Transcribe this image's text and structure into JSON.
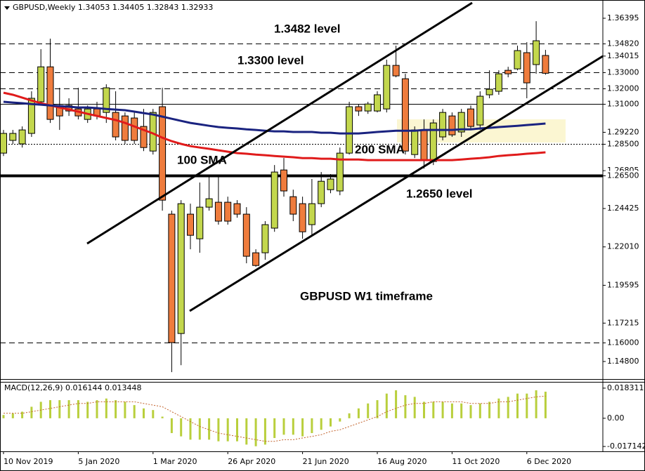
{
  "chart_data": [
    {
      "type": "candlestick",
      "title": "GBPUSD,Weekly",
      "categories": [
        "10 Nov 2019",
        null,
        null,
        null,
        null,
        null,
        null,
        null,
        "5 Jan 2020",
        null,
        null,
        null,
        null,
        null,
        null,
        null,
        "1 Mar 2020",
        null,
        null,
        null,
        null,
        null,
        null,
        null,
        "26 Apr 2020",
        null,
        null,
        null,
        null,
        null,
        null,
        null,
        "21 Jun 2020",
        null,
        null,
        null,
        null,
        null,
        null,
        null,
        "16 Aug 2020",
        null,
        null,
        null,
        null,
        null,
        null,
        null,
        "11 Oct 2020",
        null,
        null,
        null,
        null,
        null,
        null,
        null,
        "6 Dec 2020",
        null,
        null
      ],
      "open": [
        1.2791,
        1.2871,
        1.2849,
        1.2915,
        1.3114,
        1.3334,
        1.3091,
        1.3091,
        1.3069,
        1.3003,
        1.3069,
        1.3047,
        1.3047,
        1.3025,
        1.3012,
        1.2959,
        1.2804,
        1.3083,
        1.2407,
        1.1656,
        1.2407,
        1.2252,
        1.2451,
        1.2482,
        1.2482,
        1.2473,
        1.2407,
        1.2164,
        1.2164,
        1.2319,
        1.2685,
        1.2517,
        1.2473,
        1.2341,
        1.2473,
        1.2561,
        1.2553,
        1.2791,
        1.3083,
        1.3056,
        1.3056,
        1.3069,
        1.3343,
        1.3259,
        1.2782,
        1.2937,
        1.2738,
        1.2893,
        1.3025,
        1.2924,
        1.3069,
        1.2968,
        1.3158,
        1.318,
        1.3312,
        1.3321,
        1.3423,
        1.3348,
        1.34053
      ],
      "high": [
        1.2937,
        1.2937,
        1.2959,
        1.318,
        1.3445,
        1.3511,
        1.3202,
        1.3136,
        1.3202,
        1.3091,
        1.3114,
        1.3224,
        1.318,
        1.3047,
        1.3047,
        1.3069,
        1.3069,
        1.3202,
        1.2429,
        1.2495,
        1.2473,
        1.2606,
        1.265,
        1.265,
        1.2517,
        1.2495,
        1.2451,
        1.2186,
        1.2363,
        1.2716,
        1.276,
        1.2561,
        1.2517,
        1.2628,
        1.2672,
        1.2659,
        1.2826,
        1.3114,
        1.31,
        1.3114,
        1.318,
        1.3379,
        1.3467,
        1.329,
        1.2959,
        1.3003,
        1.3003,
        1.3069,
        1.3047,
        1.3069,
        1.3091,
        1.318,
        1.3312,
        1.3312,
        1.3334,
        1.3467,
        1.3489,
        1.3621,
        1.34405
      ],
      "low": [
        1.2773,
        1.2849,
        1.2826,
        1.2893,
        1.3091,
        1.2981,
        1.2937,
        1.3025,
        1.3003,
        1.2981,
        1.3003,
        1.2981,
        1.2871,
        1.2849,
        1.2849,
        1.2804,
        1.2782,
        1.2429,
        1.1413,
        1.1457,
        1.2186,
        1.2164,
        1.2429,
        1.2341,
        1.2341,
        1.2385,
        1.2098,
        1.2076,
        1.212,
        1.2296,
        1.2517,
        1.2363,
        1.2252,
        1.2274,
        1.2451,
        1.2539,
        1.2526,
        1.2782,
        1.3025,
        1.3038,
        1.3047,
        1.3047,
        1.3268,
        1.2782,
        1.276,
        1.2694,
        1.2716,
        1.2871,
        1.2893,
        1.2893,
        1.2937,
        1.2937,
        1.3136,
        1.3158,
        1.3268,
        1.3312,
        1.3136,
        1.329,
        1.32843
      ],
      "close": [
        1.2915,
        1.2915,
        1.2937,
        1.3136,
        1.3334,
        1.3003,
        1.3025,
        1.3056,
        1.3025,
        1.3069,
        1.3025,
        1.3202,
        1.2893,
        1.2871,
        1.2871,
        1.2826,
        1.3047,
        1.2495,
        1.1599,
        1.2473,
        1.2274,
        1.2451,
        1.2504,
        1.2363,
        1.2363,
        1.2407,
        1.2142,
        1.2084,
        1.2341,
        1.2672,
        1.2553,
        1.2407,
        1.2296,
        1.2473,
        1.2614,
        1.2628,
        1.2791,
        1.3083,
        1.3056,
        1.31,
        1.3158,
        1.3343,
        1.3277,
        1.2804,
        1.2937,
        1.2747,
        1.2981,
        1.3047,
        1.2906,
        1.3047,
        1.2959,
        1.3149,
        1.3193,
        1.329,
        1.329,
        1.3436,
        1.3233,
        1.3498,
        1.32933
      ],
      "up_color": "#c3d74d",
      "down_color": "#ef7c3d",
      "series": [
        {
          "name": "100 SMA",
          "color": "#e01b1b",
          "values": [
            1.3171,
            1.3158,
            1.314,
            1.3122,
            1.3105,
            1.3091,
            1.3078,
            1.3065,
            1.3052,
            1.3038,
            1.3025,
            1.3012,
            1.2999,
            1.2981,
            1.2959,
            1.2937,
            1.2915,
            1.2888,
            1.2866,
            1.2849,
            1.2835,
            1.2826,
            1.2818,
            1.2809,
            1.28,
            1.2791,
            1.2787,
            1.2782,
            1.2778,
            1.2773,
            1.2769,
            1.2765,
            1.276,
            1.276,
            1.2756,
            1.2756,
            1.2751,
            1.2751,
            1.2751,
            1.2747,
            1.2747,
            1.2747,
            1.2747,
            1.2747,
            1.2747,
            1.2747,
            1.2747,
            1.2747,
            1.2747,
            1.2751,
            1.2756,
            1.276,
            1.2765,
            1.2773,
            1.2778,
            1.2782,
            1.2787,
            1.2791,
            1.2796
          ]
        },
        {
          "name": "200 SMA",
          "color": "#1a2380",
          "values": [
            1.3114,
            1.3109,
            1.3105,
            1.31,
            1.3096,
            1.3091,
            1.3087,
            1.3083,
            1.3078,
            1.3078,
            1.3074,
            1.3069,
            1.3065,
            1.3061,
            1.3052,
            1.3043,
            1.3034,
            1.3021,
            1.3007,
            1.2994,
            1.2981,
            1.2972,
            1.2963,
            1.2955,
            1.295,
            1.2946,
            1.2941,
            1.2937,
            1.2932,
            1.2928,
            1.2928,
            1.2924,
            1.2924,
            1.2924,
            1.2919,
            1.2919,
            1.2915,
            1.2915,
            1.2915,
            1.2919,
            1.2924,
            1.2928,
            1.2932,
            1.2932,
            1.2932,
            1.2937,
            1.2937,
            1.2937,
            1.2937,
            1.2941,
            1.2941,
            1.2946,
            1.295,
            1.2955,
            1.2959,
            1.2963,
            1.2968,
            1.2972,
            1.2977
          ]
        }
      ],
      "ylim": [
        1.13696,
        1.37543
      ],
      "yticks": [
        1.36395,
        1.34015,
        {
          "value": 1.2922,
          "label": "1.29220"
        },
        1.26805,
        1.24425,
        {
          "value": 1.2201,
          "label": "1.22010"
        },
        1.19595,
        1.17215,
        {
          "value": 1.148,
          "label": "1.14800"
        }
      ],
      "levels": [
        {
          "value": 1.3482,
          "label": "1.34820",
          "style": "dashed"
        },
        {
          "value": 1.33,
          "label": "1.33000",
          "style": "dashed"
        },
        {
          "value": 1.32,
          "label": "1.32000",
          "style": "dashed"
        },
        {
          "value": 1.31,
          "label": "1.31000",
          "style": "solid"
        },
        {
          "value": 1.285,
          "label": "1.28500",
          "style": "dotted"
        },
        {
          "value": 1.265,
          "label": "1.26500",
          "style": "thick"
        },
        {
          "value": 1.16,
          "label": "1.16000",
          "style": "dashed"
        }
      ],
      "annotations": [
        "1.3482 level",
        "1.3300 level",
        "1.2650 level",
        "GBPUSD W1 timeframe"
      ]
    },
    {
      "type": "bar",
      "title": "MACD(12,26,9)",
      "values": [
        0.002,
        0.003,
        0.004,
        0.007,
        0.01,
        0.011,
        0.011,
        0.011,
        0.011,
        0.01,
        0.011,
        0.012,
        0.011,
        0.01,
        0.008,
        0.006,
        0.005,
        0.001,
        -0.009,
        -0.011,
        -0.013,
        -0.013,
        -0.013,
        -0.014,
        -0.014,
        -0.014,
        -0.016,
        -0.017,
        -0.016,
        -0.012,
        -0.01,
        -0.01,
        -0.011,
        -0.009,
        -0.007,
        -0.005,
        -0.002,
        0.003,
        0.006,
        0.009,
        0.011,
        0.015,
        0.017,
        0.014,
        0.013,
        0.01,
        0.01,
        0.01,
        0.009,
        0.009,
        0.008,
        0.009,
        0.01,
        0.012,
        0.013,
        0.015,
        0.015,
        0.017,
        0.016144
      ],
      "color": "#b9cf3c",
      "signal": [
        0.003,
        0.003,
        0.003,
        0.004,
        0.005,
        0.006,
        0.007,
        0.008,
        0.009,
        0.009,
        0.01,
        0.01,
        0.01,
        0.01,
        0.01,
        0.009,
        0.008,
        0.007,
        0.004,
        0.001,
        -0.002,
        -0.005,
        -0.007,
        -0.009,
        -0.01,
        -0.011,
        -0.012,
        -0.013,
        -0.014,
        -0.014,
        -0.013,
        -0.013,
        -0.012,
        -0.011,
        -0.01,
        -0.008,
        -0.007,
        -0.005,
        -0.003,
        -0.001,
        0.001,
        0.004,
        0.006,
        0.008,
        0.009,
        0.009,
        0.01,
        0.01,
        0.01,
        0.01,
        0.009,
        0.009,
        0.009,
        0.01,
        0.01,
        0.011,
        0.012,
        0.013,
        0.013448
      ],
      "signal_color": "#c2622c",
      "ylim": [
        -0.0201,
        0.0217
      ],
      "yticks": [
        0.018311,
        {
          "value": 0,
          "label": "0.00"
        },
        -0.017142
      ]
    }
  ]
}
